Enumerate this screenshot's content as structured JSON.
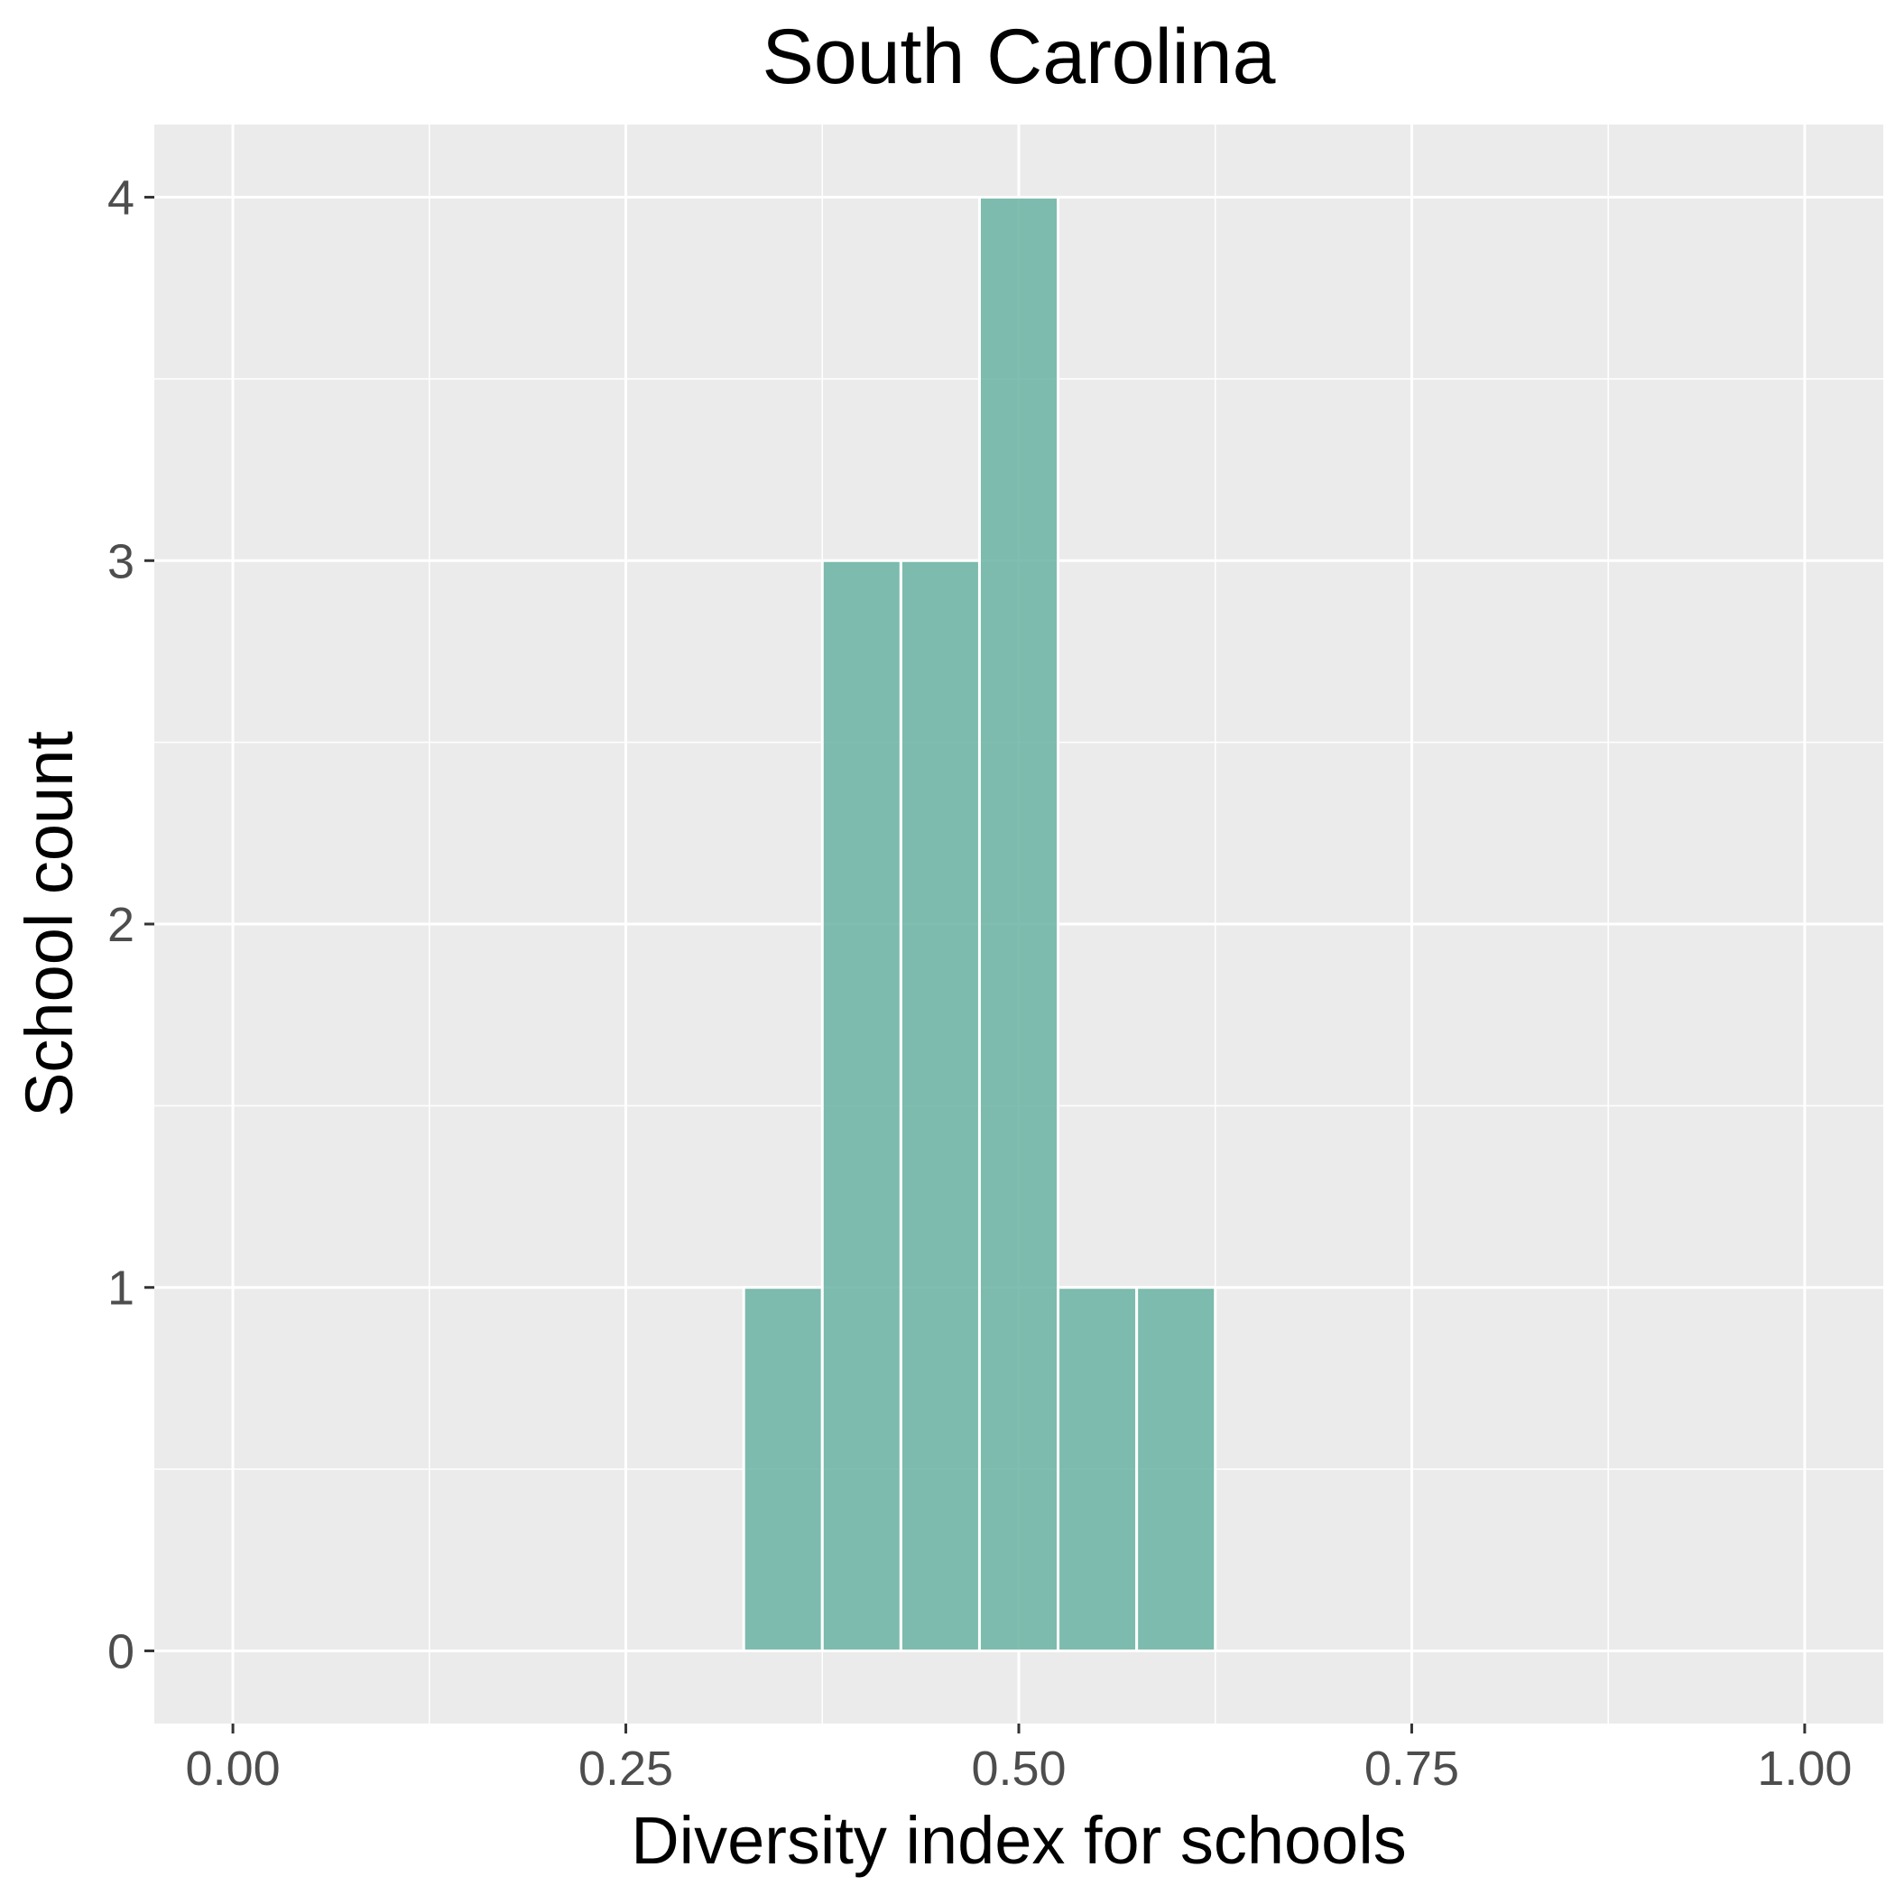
{
  "chart_data": {
    "type": "bar",
    "title": "South Carolina",
    "xlabel": "Diversity index for schools",
    "ylabel": "School count",
    "xlim": [
      -0.05,
      1.05
    ],
    "ylim": [
      -0.2,
      4.2
    ],
    "x_ticks": [
      0.0,
      0.25,
      0.5,
      0.75,
      1.0
    ],
    "x_tick_labels": [
      "0.00",
      "0.25",
      "0.50",
      "0.75",
      "1.00"
    ],
    "y_ticks": [
      0,
      1,
      2,
      3,
      4
    ],
    "y_tick_labels": [
      "0",
      "1",
      "2",
      "3",
      "4"
    ],
    "bin_width": 0.05,
    "bins": [
      {
        "x_start": 0.325,
        "x_end": 0.375,
        "count": 1
      },
      {
        "x_start": 0.375,
        "x_end": 0.425,
        "count": 3
      },
      {
        "x_start": 0.425,
        "x_end": 0.475,
        "count": 3
      },
      {
        "x_start": 0.475,
        "x_end": 0.525,
        "count": 4
      },
      {
        "x_start": 0.525,
        "x_end": 0.575,
        "count": 1
      },
      {
        "x_start": 0.575,
        "x_end": 0.625,
        "count": 1
      }
    ],
    "bar_color": "#69b3a2",
    "panel_background": "#ebebeb",
    "grid": true,
    "legend": "none"
  }
}
